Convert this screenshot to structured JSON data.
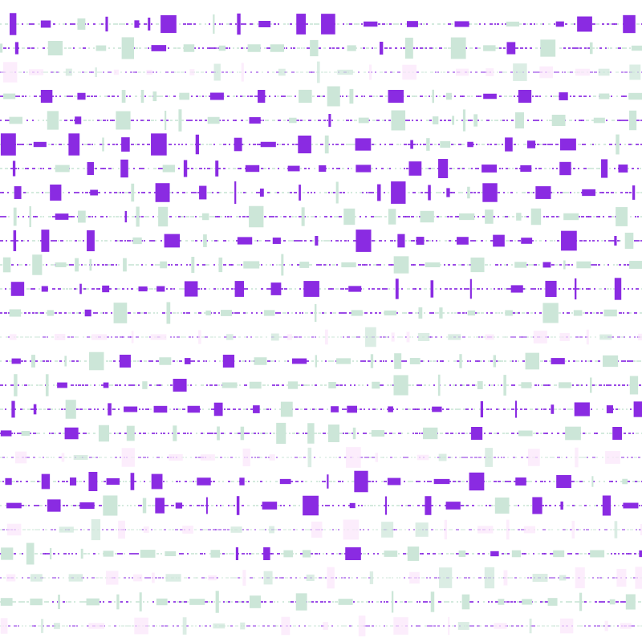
{
  "colors": {
    "purple": "#8a2be2",
    "green": "#cce6d8",
    "pink": "#fbe6fb",
    "background": "#ffffff"
  },
  "rows": [
    {
      "kind": "purple"
    },
    {
      "kind": "green"
    },
    {
      "kind": "faint"
    },
    {
      "kind": "mixed"
    },
    {
      "kind": "green"
    },
    {
      "kind": "purple"
    },
    {
      "kind": "purple"
    },
    {
      "kind": "purple"
    },
    {
      "kind": "green"
    },
    {
      "kind": "purple"
    },
    {
      "kind": "green"
    },
    {
      "kind": "purple"
    },
    {
      "kind": "green"
    },
    {
      "kind": "faint"
    },
    {
      "kind": "green"
    },
    {
      "kind": "green"
    },
    {
      "kind": "purple"
    },
    {
      "kind": "green"
    },
    {
      "kind": "faint"
    },
    {
      "kind": "purple"
    },
    {
      "kind": "purple"
    },
    {
      "kind": "faint"
    },
    {
      "kind": "green"
    },
    {
      "kind": "faint"
    },
    {
      "kind": "green"
    },
    {
      "kind": "faint"
    }
  ]
}
